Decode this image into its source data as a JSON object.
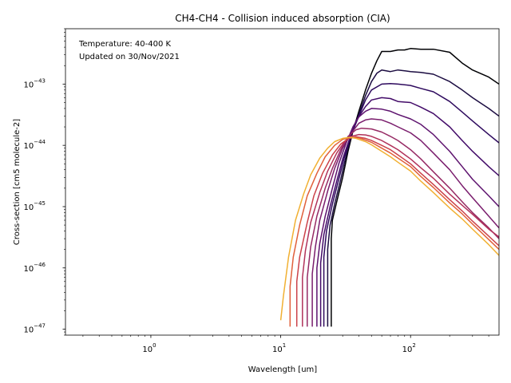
{
  "chart_data": {
    "type": "line",
    "title": "CH4-CH4 - Collision induced absorption (CIA)",
    "xlabel": "Wavelength [um]",
    "ylabel": "Cross-section [cm5 molecule-2]",
    "xscale": "log",
    "yscale": "log",
    "xlim": [
      0.22,
      480
    ],
    "ylim": [
      8e-48,
      8e-43
    ],
    "grid": false,
    "x_ticks": [
      {
        "value": 1,
        "base": "10",
        "exp": "0"
      },
      {
        "value": 10,
        "base": "10",
        "exp": "1"
      },
      {
        "value": 100,
        "base": "10",
        "exp": "2"
      }
    ],
    "y_ticks": [
      {
        "value": 1e-47,
        "base": "10",
        "exp": "−47"
      },
      {
        "value": 1e-46,
        "base": "10",
        "exp": "−46"
      },
      {
        "value": 1e-45,
        "base": "10",
        "exp": "−45"
      },
      {
        "value": 1e-44,
        "base": "10",
        "exp": "−44"
      },
      {
        "value": 1e-43,
        "base": "10",
        "exp": "−43"
      }
    ],
    "annotations": [
      "Temperature: 40-400 K",
      "Updated on 30/Nov/2021"
    ],
    "series": [
      {
        "color": "#000004",
        "x": [
          24.5,
          24.5,
          25,
          27,
          30,
          33,
          36,
          40,
          45,
          50,
          55,
          60,
          70,
          80,
          90,
          100,
          120,
          150,
          200,
          250,
          300,
          400,
          480
        ],
        "y": [
          1.1e-47,
          3e-46,
          6e-46,
          1.2e-45,
          3e-45,
          8e-45,
          1.7e-44,
          3.6e-44,
          8e-44,
          1.5e-43,
          2.4e-43,
          3.4e-43,
          3.4e-43,
          3.6e-43,
          3.6e-43,
          3.8e-43,
          3.7e-43,
          3.7e-43,
          3.3e-43,
          2.2e-43,
          1.7e-43,
          1.3e-43,
          1e-43
        ]
      },
      {
        "color": "#1b0c41",
        "x": [
          23,
          23,
          24,
          26,
          29,
          32,
          35,
          40,
          45,
          50,
          55,
          60,
          70,
          80,
          100,
          120,
          150,
          200,
          250,
          300,
          400,
          480
        ],
        "y": [
          1.1e-47,
          2e-46,
          5e-46,
          1.1e-45,
          2.8e-45,
          7e-45,
          1.5e-44,
          3.2e-44,
          6.5e-44,
          1.1e-43,
          1.5e-43,
          1.7e-43,
          1.6e-43,
          1.7e-43,
          1.6e-43,
          1.55e-43,
          1.45e-43,
          1.1e-43,
          8e-44,
          6e-44,
          4e-44,
          3e-44
        ]
      },
      {
        "color": "#2e0a5e",
        "x": [
          21.5,
          21.5,
          22.5,
          25,
          28,
          31,
          35,
          40,
          45,
          50,
          60,
          70,
          80,
          100,
          120,
          150,
          200,
          250,
          300,
          400,
          480
        ],
        "y": [
          1.1e-47,
          1.5e-46,
          4e-46,
          1.1e-45,
          2.8e-45,
          6.5e-45,
          1.5e-44,
          3e-44,
          5.5e-44,
          8e-44,
          1e-43,
          1.02e-43,
          1e-43,
          9.5e-44,
          8.5e-44,
          7.5e-44,
          5.2e-44,
          3.5e-44,
          2.5e-44,
          1.5e-44,
          1.1e-44
        ]
      },
      {
        "color": "#420a68",
        "x": [
          20.3,
          20.3,
          21.5,
          24,
          27,
          30,
          34,
          38,
          45,
          50,
          60,
          70,
          80,
          100,
          120,
          150,
          200,
          250,
          300,
          400,
          480
        ],
        "y": [
          1.1e-47,
          1.2e-46,
          3.5e-46,
          1e-45,
          2.6e-45,
          6e-45,
          1.3e-44,
          2.5e-44,
          4.3e-44,
          5.5e-44,
          6e-44,
          5.8e-44,
          5.2e-44,
          5e-44,
          4.2e-44,
          3.3e-44,
          2e-44,
          1.2e-44,
          8e-45,
          4.5e-45,
          3.2e-45
        ]
      },
      {
        "color": "#5d126e",
        "x": [
          19,
          19,
          20,
          22,
          25,
          28,
          32,
          36,
          40,
          45,
          50,
          60,
          70,
          80,
          100,
          120,
          150,
          200,
          250,
          300,
          400,
          480
        ],
        "y": [
          1.1e-47,
          1e-46,
          2.5e-46,
          7e-46,
          2e-45,
          5e-45,
          1.1e-44,
          2e-44,
          2.9e-44,
          3.6e-44,
          4e-44,
          3.9e-44,
          3.6e-44,
          3.2e-44,
          2.7e-44,
          2.2e-44,
          1.5e-44,
          8e-45,
          4.5e-45,
          2.8e-45,
          1.5e-45,
          1e-45
        ]
      },
      {
        "color": "#7a1d6d",
        "x": [
          17.5,
          17.5,
          18.5,
          20,
          23,
          26,
          30,
          35,
          40,
          45,
          50,
          60,
          70,
          80,
          100,
          120,
          150,
          200,
          250,
          300,
          400,
          480
        ],
        "y": [
          1.1e-47,
          8e-47,
          2.2e-46,
          6e-46,
          1.8e-45,
          4.2e-45,
          9e-45,
          1.6e-44,
          2.3e-44,
          2.6e-44,
          2.7e-44,
          2.6e-44,
          2.3e-44,
          2e-44,
          1.6e-44,
          1.2e-44,
          7.5e-45,
          4e-45,
          2.2e-45,
          1.4e-45,
          7e-46,
          4.5e-46
        ]
      },
      {
        "color": "#962a64",
        "x": [
          16,
          16,
          17,
          19,
          22,
          25,
          29,
          33,
          38,
          42,
          50,
          60,
          70,
          80,
          100,
          120,
          150,
          200,
          250,
          300,
          400,
          480
        ],
        "y": [
          1.1e-47,
          7e-47,
          2.2e-46,
          7e-46,
          2e-45,
          4.2e-45,
          8.5e-45,
          1.4e-44,
          1.8e-44,
          1.9e-44,
          1.85e-44,
          1.65e-44,
          1.4e-44,
          1.2e-44,
          8.5e-45,
          6e-45,
          3.7e-45,
          2e-45,
          1.2e-45,
          8e-46,
          4.5e-46,
          3e-46
        ]
      },
      {
        "color": "#b1325a",
        "x": [
          14.7,
          14.7,
          15.5,
          17,
          20,
          23,
          27,
          31,
          35,
          40,
          45,
          50,
          60,
          70,
          80,
          100,
          120,
          150,
          200,
          250,
          300,
          400,
          480
        ],
        "y": [
          1.1e-47,
          7e-47,
          1.9e-46,
          5.5e-46,
          1.7e-45,
          3.8e-45,
          7.5e-45,
          1.15e-44,
          1.4e-44,
          1.5e-44,
          1.48e-44,
          1.4e-44,
          1.2e-44,
          1e-44,
          8.5e-45,
          6e-45,
          4.3e-45,
          2.9e-45,
          1.6e-45,
          1.05e-45,
          7.5e-46,
          4.3e-46,
          3.2e-46
        ]
      },
      {
        "color": "#cb4149",
        "x": [
          13.3,
          13.3,
          14,
          16,
          18,
          21,
          25,
          29,
          33,
          38,
          45,
          50,
          60,
          70,
          80,
          100,
          120,
          150,
          200,
          250,
          300,
          400,
          480
        ],
        "y": [
          1.1e-47,
          6e-47,
          1.5e-46,
          5.5e-46,
          1.5e-45,
          3.5e-45,
          7e-45,
          1.05e-44,
          1.28e-44,
          1.38e-44,
          1.3e-44,
          1.2e-44,
          1e-44,
          8.5e-45,
          7e-45,
          5e-45,
          3.5e-45,
          2.3e-45,
          1.3e-45,
          8.5e-46,
          5.8e-46,
          3.3e-46,
          2.3e-46
        ]
      },
      {
        "color": "#e0603b",
        "x": [
          11.8,
          11.8,
          12.5,
          14,
          16,
          19,
          22,
          26,
          30,
          35,
          40,
          45,
          50,
          60,
          70,
          80,
          100,
          120,
          150,
          200,
          250,
          300,
          400,
          480
        ],
        "y": [
          1.1e-47,
          5e-47,
          1.5e-46,
          5e-46,
          1.5e-45,
          3.5e-45,
          6.5e-45,
          1e-44,
          1.25e-44,
          1.36e-44,
          1.32e-44,
          1.22e-44,
          1.12e-44,
          9e-45,
          7.5e-45,
          6.2e-45,
          4.5e-45,
          3.1e-45,
          2.05e-45,
          1.15e-45,
          7.6e-46,
          5.2e-46,
          2.9e-46,
          2e-46
        ]
      },
      {
        "color": "#f1b032",
        "x": [
          10,
          10.5,
          11.5,
          13,
          15,
          17,
          20,
          23,
          26,
          30,
          34,
          38,
          45,
          50,
          60,
          70,
          80,
          100,
          120,
          150,
          200,
          250,
          300,
          400,
          480
        ],
        "y": [
          1.4e-47,
          3.5e-47,
          1.5e-46,
          6e-46,
          1.6e-45,
          3.3e-45,
          6.2e-45,
          9e-45,
          1.15e-44,
          1.3e-44,
          1.35e-44,
          1.3e-44,
          1.15e-44,
          1.02e-44,
          8e-45,
          6.5e-45,
          5.3e-45,
          3.8e-45,
          2.6e-45,
          1.7e-45,
          9.5e-46,
          6.3e-46,
          4.3e-46,
          2.4e-46,
          1.6e-46
        ]
      }
    ]
  }
}
